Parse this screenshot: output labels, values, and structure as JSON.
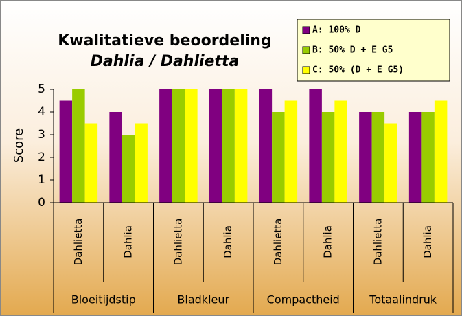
{
  "chart_data": {
    "type": "bar",
    "title": "Kwalitatieve beoordeling",
    "subtitle": "Dahlia / Dahlietta",
    "y_label": "Score",
    "categories": [
      "Dahlietta",
      "Dahlia",
      "Dahlietta",
      "Dahlia",
      "Dahlietta",
      "Dahlia",
      "Dahlietta",
      "Dahlia"
    ],
    "groups": [
      "Bloeitijdstip",
      "Bladkleur",
      "Compactheid",
      "Totaalindruk"
    ],
    "series": [
      {
        "name": "A: 100% D",
        "color": "#800080",
        "values": [
          4.5,
          4,
          5,
          5,
          5,
          5,
          4,
          4
        ]
      },
      {
        "name": "B: 50% D + E G5",
        "color": "#99cc00",
        "values": [
          5,
          3,
          5,
          5,
          4,
          4,
          4,
          4
        ]
      },
      {
        "name": "C: 50% (D + E G5)",
        "color": "#ffff00",
        "values": [
          3.5,
          3.5,
          5,
          5,
          4.5,
          4.5,
          3.5,
          4.5
        ]
      }
    ],
    "ylim": [
      0,
      5
    ],
    "yticks": [
      0,
      1,
      2,
      3,
      4,
      5
    ],
    "grid": false,
    "legend": "top-right"
  }
}
